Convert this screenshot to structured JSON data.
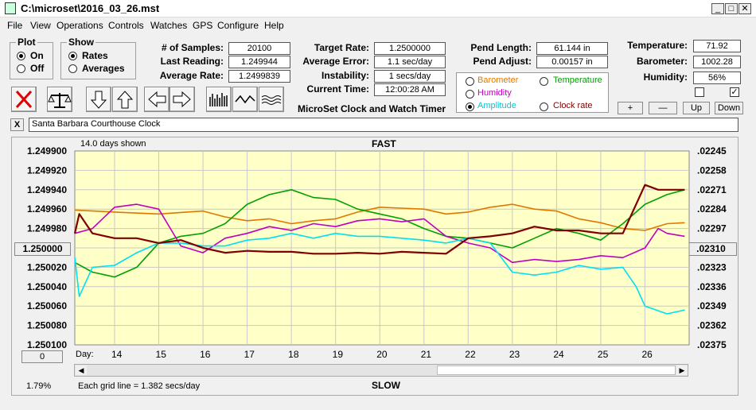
{
  "window": {
    "title": "C:\\microset\\2016_03_26.mst",
    "min": "_",
    "max": "□",
    "close": "✕"
  },
  "menu": [
    "File",
    "View",
    "Operations",
    "Controls",
    "Watches",
    "GPS",
    "Configure",
    "Help"
  ],
  "plot": {
    "title": "Plot",
    "on": "On",
    "off": "Off"
  },
  "show": {
    "title": "Show",
    "rates": "Rates",
    "averages": "Averages"
  },
  "stats": {
    "samples_label": "# of Samples:",
    "samples": "20100",
    "last_label": "Last Reading:",
    "last": "1.249944",
    "avg_label": "Average Rate:",
    "avg": "1.2499839"
  },
  "rates": {
    "target_label": "Target Rate:",
    "target": "1.2500000",
    "error_label": "Average Error:",
    "error": "1.1 sec/day",
    "instability_label": "Instability:",
    "instability": "1 secs/day",
    "time_label": "Current Time:",
    "time": "12:00:28 AM",
    "caption": "MicroSet Clock and Watch Timer"
  },
  "pend": {
    "length_label": "Pend Length:",
    "length": "61.144 in",
    "adjust_label": "Pend Adjust:",
    "adjust": "0.00157 in"
  },
  "env": {
    "temp_label": "Temperature:",
    "temp": "71.92",
    "baro_label": "Barometer:",
    "baro": "1002.28",
    "hum_label": "Humidity:",
    "hum": "56%",
    "plus": "+",
    "minus": "—",
    "up": "Up",
    "down": "Down"
  },
  "series_options": [
    {
      "label": "Barometer",
      "color": "#e07800"
    },
    {
      "label": "Temperature",
      "color": "#00a000"
    },
    {
      "label": "Humidity",
      "color": "#c000c0"
    },
    {
      "label": "Amplitude",
      "color": "#00c8d8"
    },
    {
      "label": "Clock rate",
      "color": "#800000"
    }
  ],
  "clock_name": "Santa Barbara Courthouse Clock",
  "clock_close": "X",
  "footer": {
    "zero": "0",
    "percent": "1.79%",
    "grid_note": "Each grid line = 1.382 secs/day"
  },
  "colors": {
    "plot_bg": "#ffffc8",
    "barometer": "#e07800",
    "temperature": "#00a000",
    "humidity": "#c000c0",
    "amplitude": "#00e0f0",
    "clock_rate": "#800000"
  },
  "chart_data": {
    "type": "line",
    "header_left": "14.0 days shown",
    "header_center": "FAST",
    "footer_center": "SLOW",
    "xlabel": "Day:",
    "x_ticks": [
      14,
      15,
      16,
      17,
      18,
      19,
      20,
      21,
      22,
      23,
      24,
      25,
      26
    ],
    "xlim": [
      13.1,
      27.0
    ],
    "y_left_ticks": [
      "1.249900",
      "1.249920",
      "1.249940",
      "1.249960",
      "1.249980",
      "1.250000",
      "1.250020",
      "1.250040",
      "1.250060",
      "1.250080",
      "1.250100"
    ],
    "y_left_center": "1.250000",
    "ylim_left": [
      1.2499,
      1.2501
    ],
    "y_right_ticks": [
      ".02245",
      ".02258",
      ".02271",
      ".02284",
      ".02297",
      ".02310",
      ".02323",
      ".02336",
      ".02349",
      ".02362",
      ".02375"
    ],
    "y_right_center": ".02310",
    "grid": true,
    "series": [
      {
        "name": "Barometer",
        "color": "#e07800",
        "x": [
          13.1,
          14,
          15,
          16,
          16.5,
          17,
          17.5,
          18,
          18.5,
          19,
          19.5,
          20,
          20.5,
          21,
          21.5,
          22,
          22.5,
          23,
          23.5,
          24,
          24.5,
          25,
          25.5,
          26,
          26.5,
          26.9
        ],
        "y": [
          1.249961,
          1.249963,
          1.249965,
          1.249962,
          1.249968,
          1.249972,
          1.24997,
          1.249975,
          1.249972,
          1.24997,
          1.249963,
          1.249958,
          1.249959,
          1.24996,
          1.249965,
          1.249963,
          1.249958,
          1.249955,
          1.24996,
          1.249962,
          1.24997,
          1.249974,
          1.24998,
          1.249982,
          1.249975,
          1.249974
        ]
      },
      {
        "name": "Temperature",
        "color": "#00a000",
        "x": [
          13.1,
          13.5,
          14,
          14.5,
          15,
          15.5,
          16,
          16.5,
          17,
          17.5,
          18,
          18.5,
          19,
          19.5,
          20,
          20.5,
          21,
          21.5,
          22,
          22.5,
          23,
          23.5,
          24,
          24.5,
          25,
          25.5,
          26,
          26.5,
          26.9
        ],
        "y": [
          1.250015,
          1.250025,
          1.25003,
          1.25002,
          1.249995,
          1.249988,
          1.249985,
          1.249975,
          1.249955,
          1.249945,
          1.24994,
          1.249948,
          1.24995,
          1.24996,
          1.249965,
          1.24997,
          1.24998,
          1.249988,
          1.24999,
          1.249995,
          1.25,
          1.24999,
          1.24998,
          1.249985,
          1.249992,
          1.249975,
          1.249955,
          1.249945,
          1.24994
        ]
      },
      {
        "name": "Humidity",
        "color": "#c000c0",
        "x": [
          13.1,
          13.5,
          14,
          14.5,
          15,
          15.5,
          16,
          16.5,
          17,
          17.5,
          18,
          18.5,
          19,
          19.5,
          20,
          20.5,
          21,
          21.5,
          22,
          22.5,
          23,
          23.5,
          24,
          24.5,
          25,
          25.5,
          26,
          26.3,
          26.5,
          26.9
        ],
        "y": [
          1.249985,
          1.24998,
          1.249958,
          1.249955,
          1.24996,
          1.249998,
          1.250005,
          1.24999,
          1.249985,
          1.249978,
          1.249982,
          1.249975,
          1.249978,
          1.249972,
          1.24997,
          1.249973,
          1.24997,
          1.249988,
          1.249995,
          1.25,
          1.250015,
          1.250012,
          1.250014,
          1.250012,
          1.250008,
          1.25001,
          1.25,
          1.24998,
          1.249985,
          1.249988
        ]
      },
      {
        "name": "Amplitude",
        "color": "#00e0f0",
        "x": [
          13.1,
          13.2,
          13.5,
          14,
          14.5,
          15,
          15.5,
          16,
          16.5,
          17,
          17.5,
          18,
          18.5,
          19,
          19.5,
          20,
          20.5,
          21,
          21.5,
          22,
          22.5,
          23,
          23.5,
          24,
          24.5,
          25,
          25.5,
          25.8,
          26,
          26.5,
          26.9
        ],
        "y": [
          1.25001,
          1.25005,
          1.25002,
          1.250018,
          1.250005,
          1.249995,
          1.249995,
          1.249998,
          1.249998,
          1.249992,
          1.24999,
          1.249985,
          1.24999,
          1.249985,
          1.249988,
          1.249988,
          1.24999,
          1.249992,
          1.249995,
          1.24999,
          1.249995,
          1.250025,
          1.250028,
          1.250025,
          1.250018,
          1.250022,
          1.25002,
          1.25004,
          1.25006,
          1.250068,
          1.250064
        ]
      },
      {
        "name": "Clock rate",
        "color": "#800000",
        "x": [
          13.1,
          13.2,
          13.5,
          14,
          14.5,
          15,
          15.5,
          16,
          16.5,
          17,
          17.5,
          18,
          18.5,
          19,
          19.5,
          20,
          20.5,
          21,
          21.5,
          22,
          22.5,
          23,
          23.5,
          24,
          24.5,
          25,
          25.5,
          25.8,
          26,
          26.3,
          26.5,
          26.9
        ],
        "y": [
          1.249985,
          1.249965,
          1.249985,
          1.24999,
          1.24999,
          1.249995,
          1.249992,
          1.25,
          1.250005,
          1.250003,
          1.250004,
          1.250004,
          1.250006,
          1.250006,
          1.250005,
          1.250006,
          1.250004,
          1.250005,
          1.250006,
          1.24999,
          1.249988,
          1.249985,
          1.249978,
          1.249982,
          1.249982,
          1.249985,
          1.249985,
          1.249955,
          1.249935,
          1.24994,
          1.24994,
          1.24994
        ]
      }
    ]
  }
}
